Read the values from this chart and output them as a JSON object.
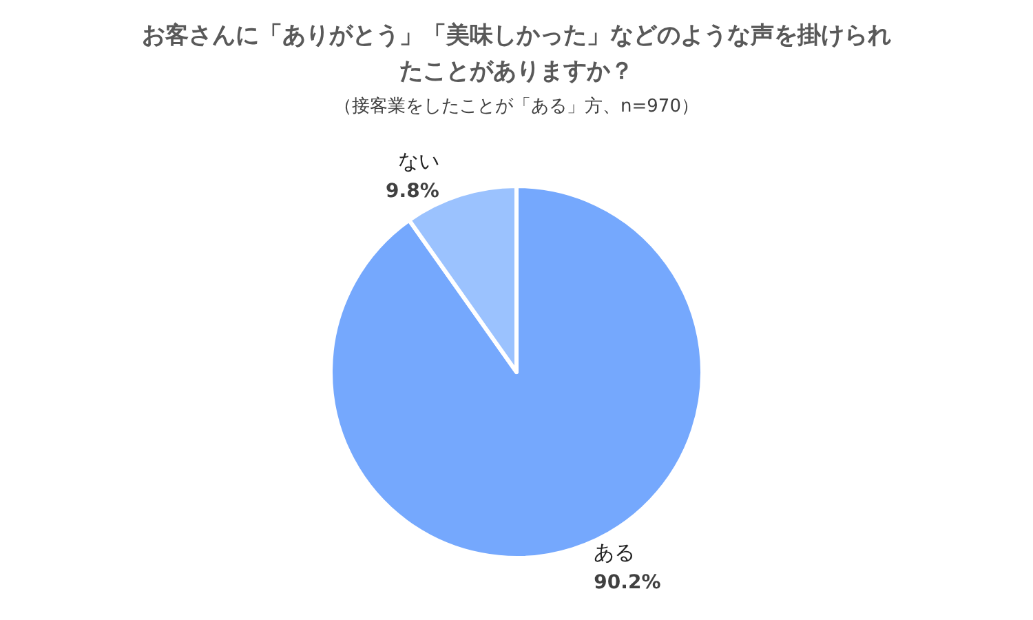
{
  "chart_data": {
    "type": "pie",
    "title": "お客さんに「ありがとう」「美味しかった」などのような声を掛けられたことがありますか？",
    "subtitle": "（接客業をしたことが「ある」方、n=970）",
    "categories": [
      "ある",
      "ない"
    ],
    "values": [
      90.2,
      9.8
    ],
    "colors": [
      "#75a8fd",
      "#9bc2fe"
    ],
    "value_labels": [
      "90.2%",
      "9.8%"
    ],
    "legend": false
  }
}
